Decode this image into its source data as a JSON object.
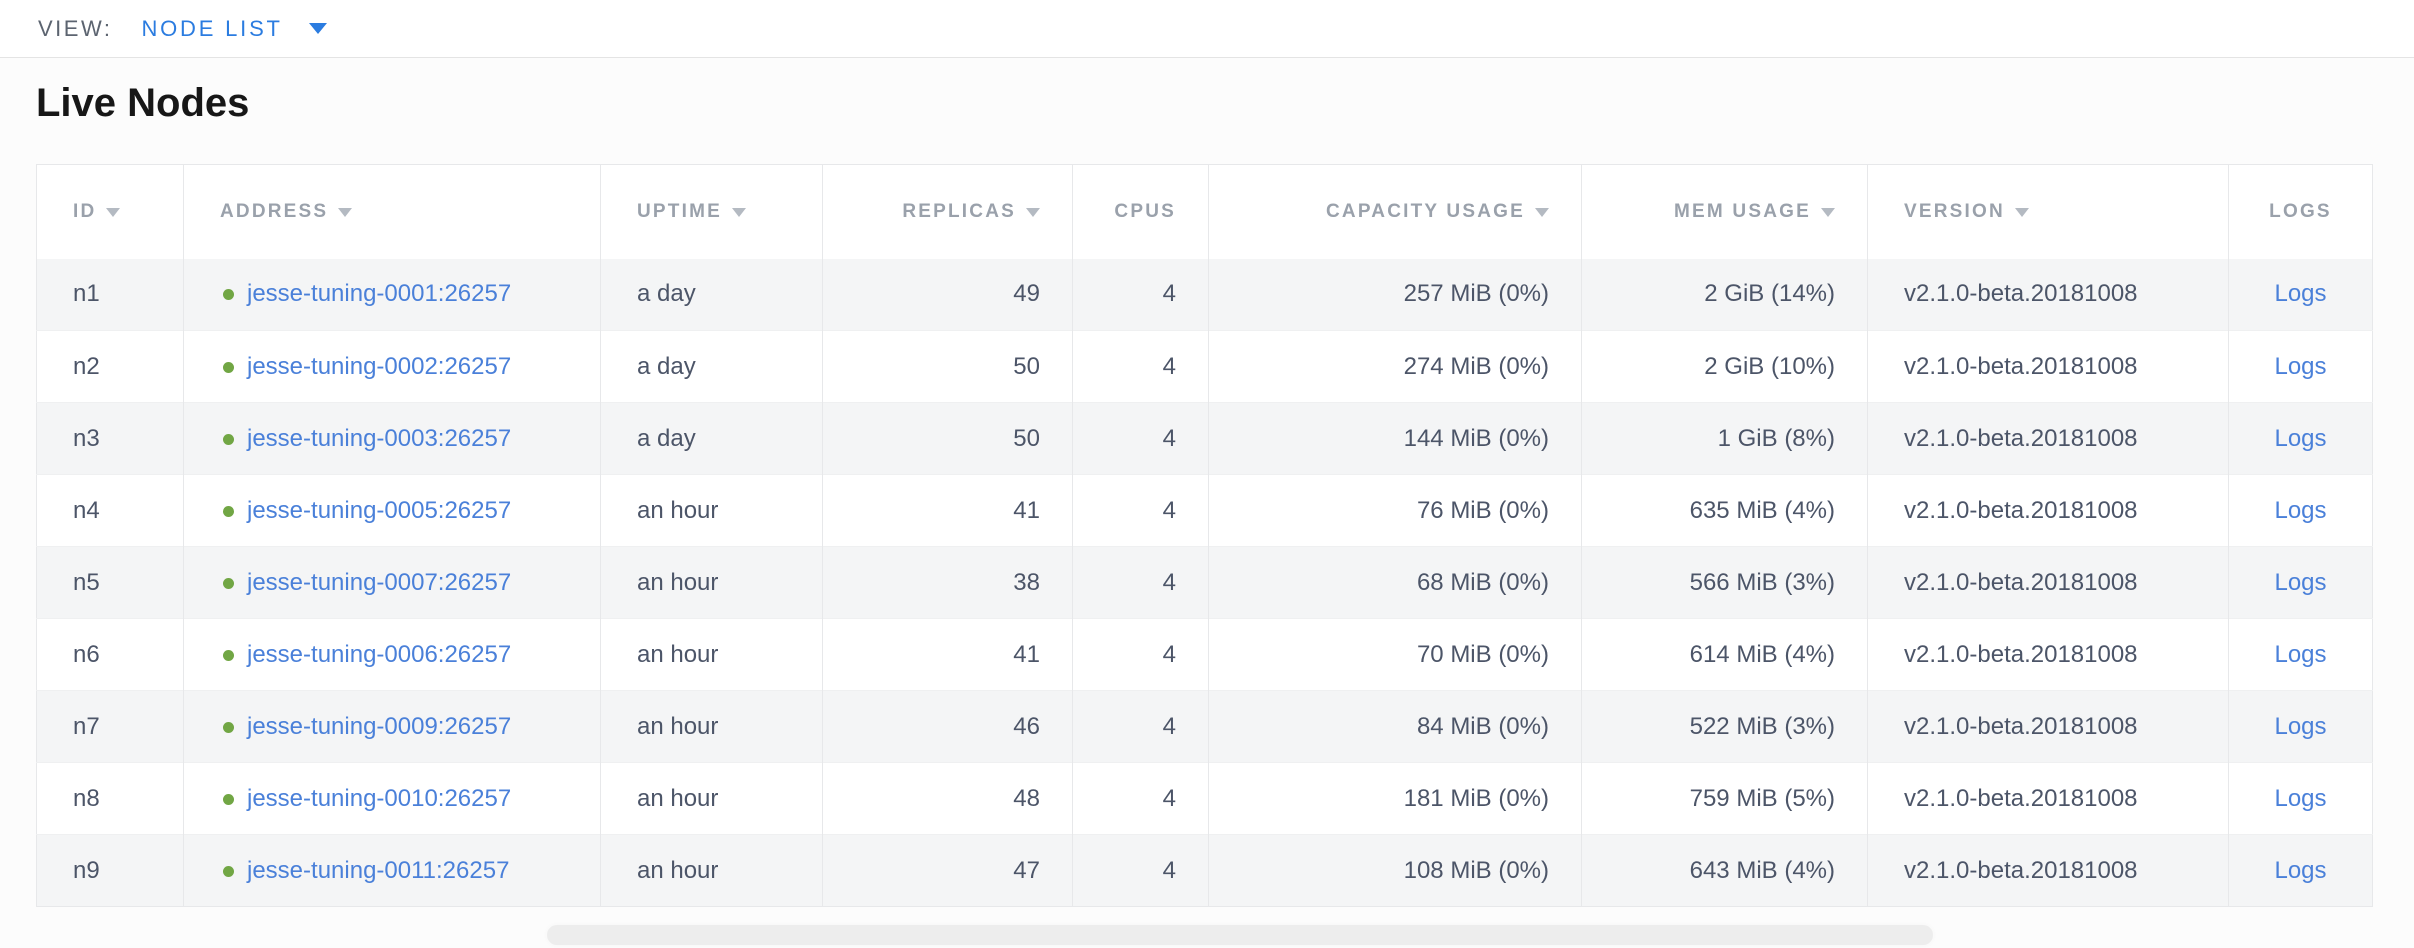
{
  "toolbar": {
    "view_label": "VIEW:",
    "view_value": "NODE LIST"
  },
  "page": {
    "title": "Live Nodes"
  },
  "table": {
    "columns": [
      {
        "key": "id",
        "label": "ID",
        "sortable": true,
        "align": "left"
      },
      {
        "key": "address",
        "label": "ADDRESS",
        "sortable": true,
        "align": "left"
      },
      {
        "key": "uptime",
        "label": "UPTIME",
        "sortable": true,
        "align": "left"
      },
      {
        "key": "replicas",
        "label": "REPLICAS",
        "sortable": true,
        "align": "right"
      },
      {
        "key": "cpus",
        "label": "CPUS",
        "sortable": false,
        "align": "right"
      },
      {
        "key": "capacity",
        "label": "CAPACITY USAGE",
        "sortable": true,
        "align": "right"
      },
      {
        "key": "mem",
        "label": "MEM USAGE",
        "sortable": true,
        "align": "right"
      },
      {
        "key": "version",
        "label": "VERSION",
        "sortable": true,
        "align": "left"
      },
      {
        "key": "logs",
        "label": "LOGS",
        "sortable": false,
        "align": "center"
      }
    ],
    "rows": [
      {
        "id": "n1",
        "address": "jesse-tuning-0001:26257",
        "uptime": "a day",
        "replicas": "49",
        "cpus": "4",
        "capacity": "257 MiB (0%)",
        "mem": "2 GiB (14%)",
        "version": "v2.1.0-beta.20181008",
        "logs": "Logs",
        "status": "live"
      },
      {
        "id": "n2",
        "address": "jesse-tuning-0002:26257",
        "uptime": "a day",
        "replicas": "50",
        "cpus": "4",
        "capacity": "274 MiB (0%)",
        "mem": "2 GiB (10%)",
        "version": "v2.1.0-beta.20181008",
        "logs": "Logs",
        "status": "live"
      },
      {
        "id": "n3",
        "address": "jesse-tuning-0003:26257",
        "uptime": "a day",
        "replicas": "50",
        "cpus": "4",
        "capacity": "144 MiB (0%)",
        "mem": "1 GiB (8%)",
        "version": "v2.1.0-beta.20181008",
        "logs": "Logs",
        "status": "live"
      },
      {
        "id": "n4",
        "address": "jesse-tuning-0005:26257",
        "uptime": "an hour",
        "replicas": "41",
        "cpus": "4",
        "capacity": "76 MiB (0%)",
        "mem": "635 MiB (4%)",
        "version": "v2.1.0-beta.20181008",
        "logs": "Logs",
        "status": "live"
      },
      {
        "id": "n5",
        "address": "jesse-tuning-0007:26257",
        "uptime": "an hour",
        "replicas": "38",
        "cpus": "4",
        "capacity": "68 MiB (0%)",
        "mem": "566 MiB (3%)",
        "version": "v2.1.0-beta.20181008",
        "logs": "Logs",
        "status": "live"
      },
      {
        "id": "n6",
        "address": "jesse-tuning-0006:26257",
        "uptime": "an hour",
        "replicas": "41",
        "cpus": "4",
        "capacity": "70 MiB (0%)",
        "mem": "614 MiB (4%)",
        "version": "v2.1.0-beta.20181008",
        "logs": "Logs",
        "status": "live"
      },
      {
        "id": "n7",
        "address": "jesse-tuning-0009:26257",
        "uptime": "an hour",
        "replicas": "46",
        "cpus": "4",
        "capacity": "84 MiB (0%)",
        "mem": "522 MiB (3%)",
        "version": "v2.1.0-beta.20181008",
        "logs": "Logs",
        "status": "live"
      },
      {
        "id": "n8",
        "address": "jesse-tuning-0010:26257",
        "uptime": "an hour",
        "replicas": "48",
        "cpus": "4",
        "capacity": "181 MiB (0%)",
        "mem": "759 MiB (5%)",
        "version": "v2.1.0-beta.20181008",
        "logs": "Logs",
        "status": "live"
      },
      {
        "id": "n9",
        "address": "jesse-tuning-0011:26257",
        "uptime": "an hour",
        "replicas": "47",
        "cpus": "4",
        "capacity": "108 MiB (0%)",
        "mem": "643 MiB (4%)",
        "version": "v2.1.0-beta.20181008",
        "logs": "Logs",
        "status": "live"
      }
    ]
  },
  "colors": {
    "accent_blue": "#2b7ce0",
    "link_blue": "#4a80d9",
    "live_green": "#71a644",
    "header_gray": "#9aa1ab",
    "cell_text": "#4c5568",
    "row_stripe": "#f4f5f6",
    "border": "#e7e8ea"
  }
}
